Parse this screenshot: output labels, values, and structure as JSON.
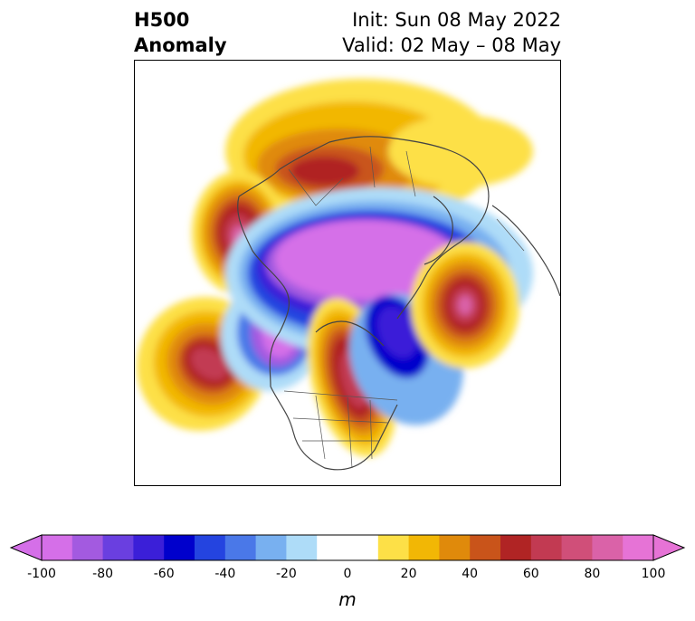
{
  "title": {
    "left_line1": "H500",
    "left_line2": "Anomaly",
    "right_line1": "Init: Sun 08 May 2022",
    "right_line2": "Valid: 02 May – 08 May"
  },
  "colorbar": {
    "unit": "m",
    "ticks": [
      "-100",
      "-80",
      "-60",
      "-40",
      "-20",
      "0",
      "20",
      "40",
      "60",
      "80",
      "100"
    ],
    "colors": [
      "#d56fe8",
      "#a35ae0",
      "#6a3fe0",
      "#3b1fd8",
      "#0000cc",
      "#2444e0",
      "#4a78e8",
      "#78b0f0",
      "#aedcf8",
      "#ffffff",
      "#ffffff",
      "#fde047",
      "#f2b705",
      "#e08a0b",
      "#c9541a",
      "#b02424",
      "#c23a52",
      "#d04f79",
      "#da62a8",
      "#e673d6"
    ]
  },
  "map": {
    "anomalies": [
      {
        "name": "siberia-ridge",
        "sign": "positive",
        "strength": 0.75
      },
      {
        "name": "alaska-ridge",
        "sign": "positive",
        "strength": 0.95
      },
      {
        "name": "north-pacific-ridge",
        "sign": "positive",
        "strength": 0.85
      },
      {
        "name": "north-america-ridge",
        "sign": "positive",
        "strength": 0.9
      },
      {
        "name": "north-atlantic-ridge",
        "sign": "positive",
        "strength": 0.9
      },
      {
        "name": "polar-trough",
        "sign": "negative",
        "strength": 1.0
      },
      {
        "name": "hudson-bay-trough",
        "sign": "negative",
        "strength": 0.7
      },
      {
        "name": "west-canada-trough",
        "sign": "negative",
        "strength": 0.85
      }
    ]
  }
}
